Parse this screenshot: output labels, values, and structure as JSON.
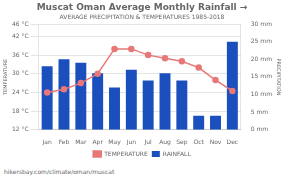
{
  "chart_data": {
    "type": "bar",
    "title": "Muscat Oman Average Monthly Rainfall →",
    "subtitle": "AVERAGE PRECIPITATION & TEMPERATURES 1985-2018",
    "footer": "hikersbay.com/climate/oman/muscat",
    "ylabel": "TEMPERATURE",
    "y2label": "PRECIPITATION",
    "categories": [
      "Jan",
      "Feb",
      "Mar",
      "Apr",
      "May",
      "Jun",
      "Jul",
      "Aug",
      "Sep",
      "Oct",
      "Nov",
      "Dec"
    ],
    "series": [
      {
        "name": "TEMPERATURE",
        "type": "line",
        "color": "#e87878",
        "marker": "circle",
        "axis": "y",
        "values": [
          24,
          25,
          27,
          30,
          38,
          38,
          36,
          35,
          34,
          32,
          28,
          24.5
        ]
      },
      {
        "name": "RAINFALL",
        "type": "bar",
        "color": "#1a4fbd",
        "axis": "y2",
        "values": [
          18,
          20,
          19,
          16,
          12,
          17,
          14,
          16,
          14,
          4,
          4,
          25
        ]
      }
    ],
    "ylim": [
      12,
      46
    ],
    "yticks": [
      {
        "value": 12,
        "label": "12 °C"
      },
      {
        "value": 18,
        "label": "18 °C"
      },
      {
        "value": 24,
        "label": "24 °C"
      },
      {
        "value": 30,
        "label": "30 °C"
      },
      {
        "value": 36,
        "label": "36 °C"
      },
      {
        "value": 42,
        "label": "42 °C"
      },
      {
        "value": 46,
        "label": "46 °C"
      }
    ],
    "y2lim": [
      0,
      30
    ],
    "y2ticks": [
      {
        "value": 0,
        "label": "0 mm"
      },
      {
        "value": 5,
        "label": "5 mm"
      },
      {
        "value": 10,
        "label": "10 mm"
      },
      {
        "value": 15,
        "label": "15 mm"
      },
      {
        "value": 20,
        "label": "20 mm"
      },
      {
        "value": 25,
        "label": "25 mm"
      },
      {
        "value": 30,
        "label": "30 mm"
      }
    ],
    "grid": true,
    "legend": "bottom"
  }
}
